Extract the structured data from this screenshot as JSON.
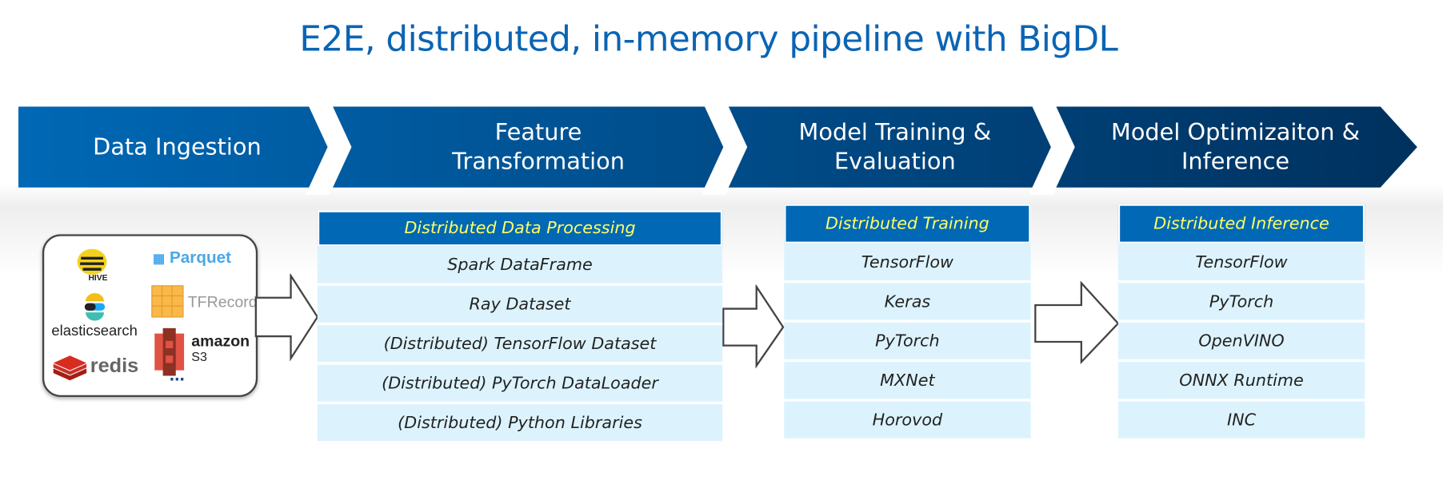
{
  "title": "E2E, distributed, in-memory pipeline with BigDL",
  "colors": {
    "title": "#0a64b4",
    "banner_start": "#0068b5",
    "banner_end": "#00315e",
    "table_header": "#0068b5",
    "header_text": "#ffff66",
    "row_bg": "#dcf3fd"
  },
  "stages": [
    {
      "label": "Data Ingestion"
    },
    {
      "label": "Feature Transformation"
    },
    {
      "label": "Model Training & Evaluation"
    },
    {
      "label": "Model Optimizaiton & Inference"
    }
  ],
  "sources": {
    "logos": [
      "HIVE",
      "Parquet",
      "elasticsearch",
      "TFRecord",
      "redis",
      "amazon",
      "S3"
    ],
    "more": "..."
  },
  "tables": [
    {
      "header": "Distributed Data Processing",
      "rows": [
        "Spark DataFrame",
        "Ray Dataset",
        "(Distributed) TensorFlow Dataset",
        "(Distributed) PyTorch DataLoader",
        "(Distributed) Python Libraries"
      ]
    },
    {
      "header": "Distributed Training",
      "rows": [
        "TensorFlow",
        "Keras",
        "PyTorch",
        "MXNet",
        "Horovod"
      ]
    },
    {
      "header": "Distributed Inference",
      "rows": [
        "TensorFlow",
        "PyTorch",
        "OpenVINO",
        "ONNX Runtime",
        "INC"
      ]
    }
  ]
}
